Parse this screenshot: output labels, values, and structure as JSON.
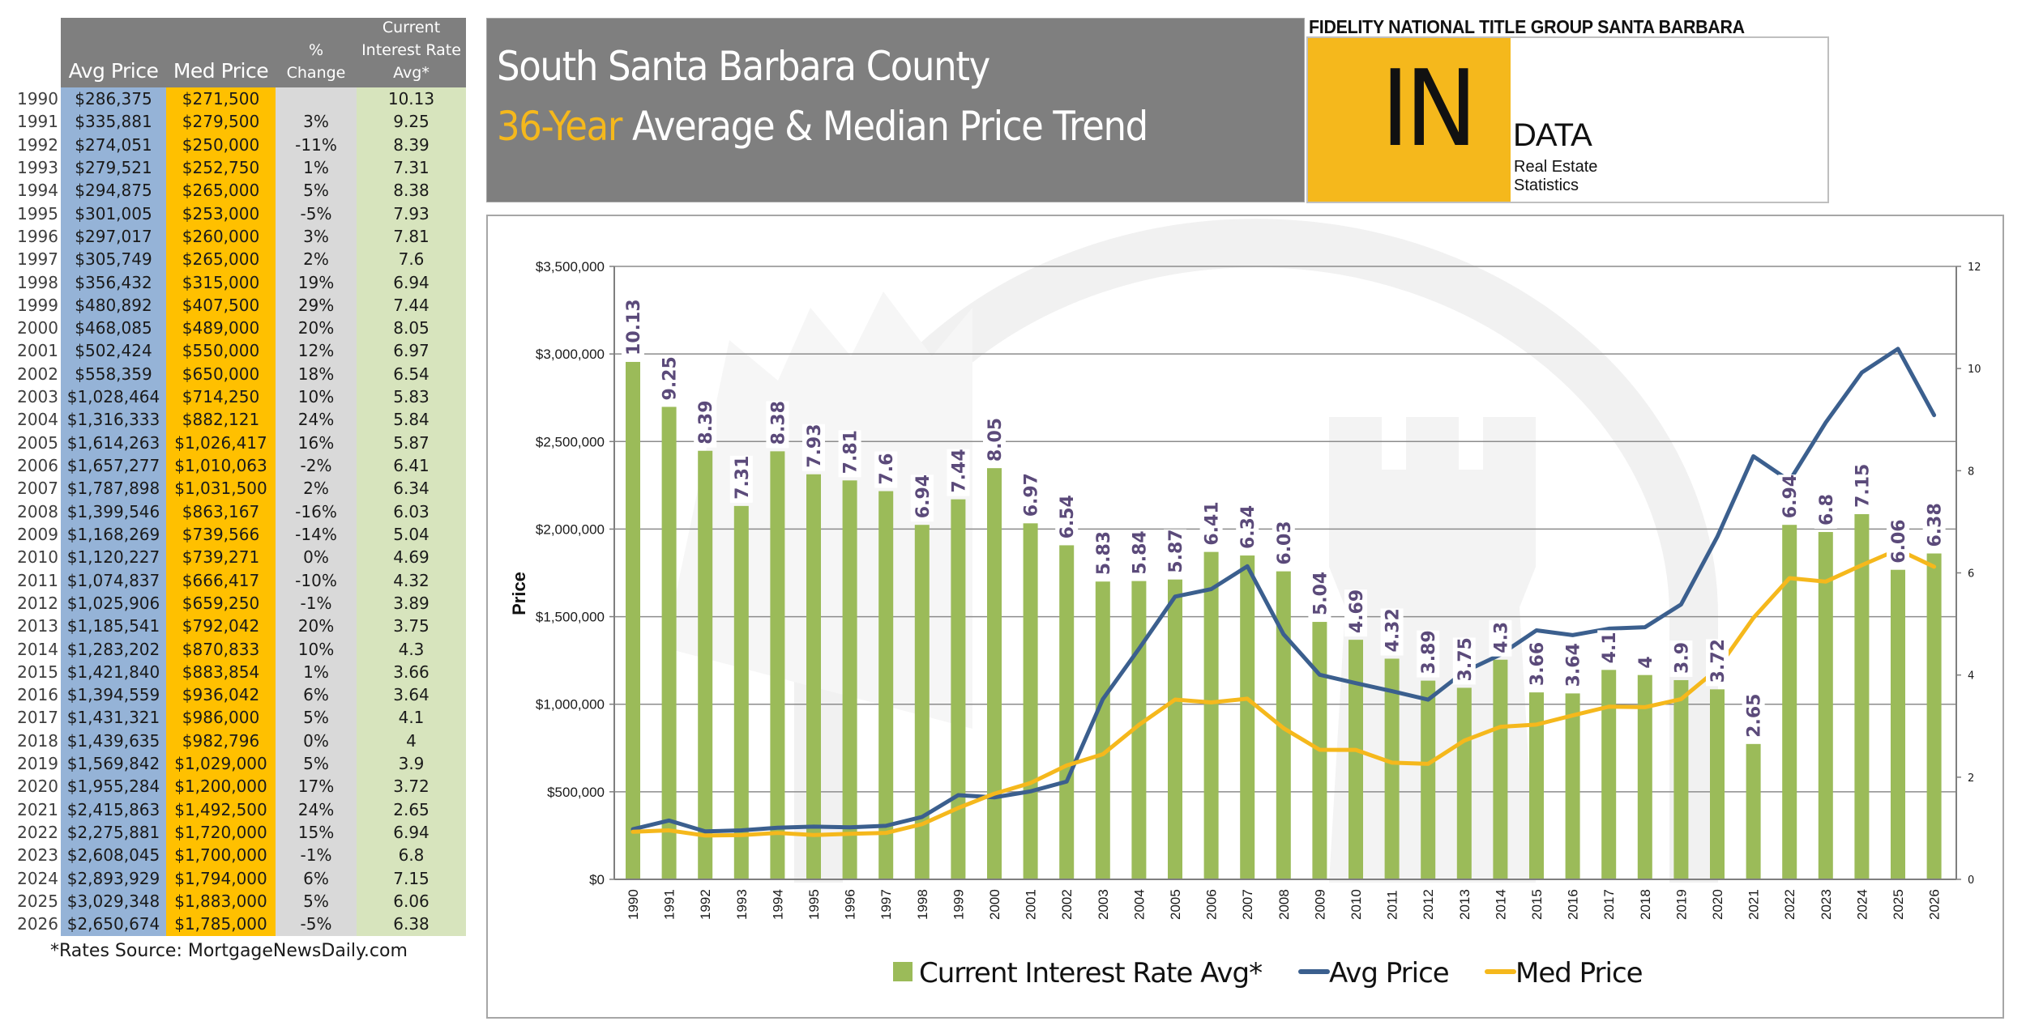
{
  "table": {
    "headers": {
      "avg": "Avg Price",
      "med": "Med Price",
      "chg_line1": "%",
      "chg_line2": "Change",
      "rate_line1": "Current",
      "rate_line2": "Interest Rate",
      "rate_line3": "Avg*"
    },
    "rows": [
      {
        "year": "1990",
        "avg": "$286,375",
        "med": "$271,500",
        "chg": "",
        "rate": "10.13"
      },
      {
        "year": "1991",
        "avg": "$335,881",
        "med": "$279,500",
        "chg": "3%",
        "rate": "9.25"
      },
      {
        "year": "1992",
        "avg": "$274,051",
        "med": "$250,000",
        "chg": "-11%",
        "rate": "8.39"
      },
      {
        "year": "1993",
        "avg": "$279,521",
        "med": "$252,750",
        "chg": "1%",
        "rate": "7.31"
      },
      {
        "year": "1994",
        "avg": "$294,875",
        "med": "$265,000",
        "chg": "5%",
        "rate": "8.38"
      },
      {
        "year": "1995",
        "avg": "$301,005",
        "med": "$253,000",
        "chg": "-5%",
        "rate": "7.93"
      },
      {
        "year": "1996",
        "avg": "$297,017",
        "med": "$260,000",
        "chg": "3%",
        "rate": "7.81"
      },
      {
        "year": "1997",
        "avg": "$305,749",
        "med": "$265,000",
        "chg": "2%",
        "rate": "7.6"
      },
      {
        "year": "1998",
        "avg": "$356,432",
        "med": "$315,000",
        "chg": "19%",
        "rate": "6.94"
      },
      {
        "year": "1999",
        "avg": "$480,892",
        "med": "$407,500",
        "chg": "29%",
        "rate": "7.44"
      },
      {
        "year": "2000",
        "avg": "$468,085",
        "med": "$489,000",
        "chg": "20%",
        "rate": "8.05"
      },
      {
        "year": "2001",
        "avg": "$502,424",
        "med": "$550,000",
        "chg": "12%",
        "rate": "6.97"
      },
      {
        "year": "2002",
        "avg": "$558,359",
        "med": "$650,000",
        "chg": "18%",
        "rate": "6.54"
      },
      {
        "year": "2003",
        "avg": "$1,028,464",
        "med": "$714,250",
        "chg": "10%",
        "rate": "5.83"
      },
      {
        "year": "2004",
        "avg": "$1,316,333",
        "med": "$882,121",
        "chg": "24%",
        "rate": "5.84"
      },
      {
        "year": "2005",
        "avg": "$1,614,263",
        "med": "$1,026,417",
        "chg": "16%",
        "rate": "5.87"
      },
      {
        "year": "2006",
        "avg": "$1,657,277",
        "med": "$1,010,063",
        "chg": "-2%",
        "rate": "6.41"
      },
      {
        "year": "2007",
        "avg": "$1,787,898",
        "med": "$1,031,500",
        "chg": "2%",
        "rate": "6.34"
      },
      {
        "year": "2008",
        "avg": "$1,399,546",
        "med": "$863,167",
        "chg": "-16%",
        "rate": "6.03"
      },
      {
        "year": "2009",
        "avg": "$1,168,269",
        "med": "$739,566",
        "chg": "-14%",
        "rate": "5.04"
      },
      {
        "year": "2010",
        "avg": "$1,120,227",
        "med": "$739,271",
        "chg": "0%",
        "rate": "4.69"
      },
      {
        "year": "2011",
        "avg": "$1,074,837",
        "med": "$666,417",
        "chg": "-10%",
        "rate": "4.32"
      },
      {
        "year": "2012",
        "avg": "$1,025,906",
        "med": "$659,250",
        "chg": "-1%",
        "rate": "3.89"
      },
      {
        "year": "2013",
        "avg": "$1,185,541",
        "med": "$792,042",
        "chg": "20%",
        "rate": "3.75"
      },
      {
        "year": "2014",
        "avg": "$1,283,202",
        "med": "$870,833",
        "chg": "10%",
        "rate": "4.3"
      },
      {
        "year": "2015",
        "avg": "$1,421,840",
        "med": "$883,854",
        "chg": "1%",
        "rate": "3.66"
      },
      {
        "year": "2016",
        "avg": "$1,394,559",
        "med": "$936,042",
        "chg": "6%",
        "rate": "3.64"
      },
      {
        "year": "2017",
        "avg": "$1,431,321",
        "med": "$986,000",
        "chg": "5%",
        "rate": "4.1"
      },
      {
        "year": "2018",
        "avg": "$1,439,635",
        "med": "$982,796",
        "chg": "0%",
        "rate": "4"
      },
      {
        "year": "2019",
        "avg": "$1,569,842",
        "med": "$1,029,000",
        "chg": "5%",
        "rate": "3.9"
      },
      {
        "year": "2020",
        "avg": "$1,955,284",
        "med": "$1,200,000",
        "chg": "17%",
        "rate": "3.72"
      },
      {
        "year": "2021",
        "avg": "$2,415,863",
        "med": "$1,492,500",
        "chg": "24%",
        "rate": "2.65"
      },
      {
        "year": "2022",
        "avg": "$2,275,881",
        "med": "$1,720,000",
        "chg": "15%",
        "rate": "6.94"
      },
      {
        "year": "2023",
        "avg": "$2,608,045",
        "med": "$1,700,000",
        "chg": "-1%",
        "rate": "6.8"
      },
      {
        "year": "2024",
        "avg": "$2,893,929",
        "med": "$1,794,000",
        "chg": "6%",
        "rate": "7.15"
      },
      {
        "year": "2025",
        "avg": "$3,029,348",
        "med": "$1,883,000",
        "chg": "5%",
        "rate": "6.06"
      },
      {
        "year": "2026",
        "avg": "$2,650,674",
        "med": "$1,785,000",
        "chg": "-5%",
        "rate": "6.38"
      }
    ],
    "footnote": "*Rates Source: MortgageNewsDaily.com"
  },
  "title": {
    "line1": "South Santa Barbara County",
    "line2_accent": "36-Year",
    "line2_rest": " Average & Median Price Trend"
  },
  "logo": {
    "company": "FIDELITY NATIONAL TITLE GROUP SANTA BARBARA",
    "big": "IN",
    "data": "DATA",
    "sub1": "Real Estate",
    "sub2": "Statistics"
  },
  "colors": {
    "bar": "#9bbb59",
    "avg_line": "#3b5f8e",
    "med_line": "#f5b81c",
    "data_label": "#5b4a7a",
    "header_gray": "#7f7f7f",
    "accent_yellow": "#f5b81c"
  },
  "chart_data": {
    "type": "bar",
    "title": "South Santa Barbara County 36-Year Average & Median Price Trend",
    "xlabel": "",
    "ylabel": "Price",
    "y2label": "",
    "ylim": [
      0,
      3500000
    ],
    "y2lim": [
      0,
      12
    ],
    "grid": true,
    "legend_position": "bottom",
    "categories": [
      "1990",
      "1991",
      "1992",
      "1993",
      "1994",
      "1995",
      "1996",
      "1997",
      "1998",
      "1999",
      "2000",
      "2001",
      "2002",
      "2003",
      "2004",
      "2005",
      "2006",
      "2007",
      "2008",
      "2009",
      "2010",
      "2011",
      "2012",
      "2013",
      "2014",
      "2015",
      "2016",
      "2017",
      "2018",
      "2019",
      "2020",
      "2021",
      "2022",
      "2023",
      "2024",
      "2025",
      "2026"
    ],
    "yticks": [
      0,
      500000,
      1000000,
      1500000,
      2000000,
      2500000,
      3000000,
      3500000
    ],
    "ytick_labels": [
      "$0",
      "$500,000",
      "$1,000,000",
      "$1,500,000",
      "$2,000,000",
      "$2,500,000",
      "$3,000,000",
      "$3,500,000"
    ],
    "y2ticks": [
      0,
      2,
      4,
      6,
      8,
      10,
      12
    ],
    "y2tick_labels": [
      "0",
      "2",
      "4",
      "6",
      "8",
      "10",
      "12"
    ],
    "series": [
      {
        "name": "Current Interest Rate Avg*",
        "type": "bar",
        "axis": "right",
        "values": [
          10.13,
          9.25,
          8.39,
          7.31,
          8.38,
          7.93,
          7.81,
          7.6,
          6.94,
          7.44,
          8.05,
          6.97,
          6.54,
          5.83,
          5.84,
          5.87,
          6.41,
          6.34,
          6.03,
          5.04,
          4.69,
          4.32,
          3.89,
          3.75,
          4.3,
          3.66,
          3.64,
          4.1,
          4,
          3.9,
          3.72,
          2.65,
          6.94,
          6.8,
          7.15,
          6.06,
          6.38
        ],
        "data_labels": [
          "10.13",
          "9.25",
          "8.39",
          "7.31",
          "8.38",
          "7.93",
          "7.81",
          "7.6",
          "6.94",
          "7.44",
          "8.05",
          "6.97",
          "6.54",
          "5.83",
          "5.84",
          "5.87",
          "6.41",
          "6.34",
          "6.03",
          "5.04",
          "4.69",
          "4.32",
          "3.89",
          "3.75",
          "4.3",
          "3.66",
          "3.64",
          "4.1",
          "4",
          "3.9",
          "3.72",
          "2.65",
          "6.94",
          "6.8",
          "7.15",
          "6.06",
          "6.38"
        ]
      },
      {
        "name": "Avg Price",
        "type": "line",
        "axis": "left",
        "values": [
          286375,
          335881,
          274051,
          279521,
          294875,
          301005,
          297017,
          305749,
          356432,
          480892,
          468085,
          502424,
          558359,
          1028464,
          1316333,
          1614263,
          1657277,
          1787898,
          1399546,
          1168269,
          1120227,
          1074837,
          1025906,
          1185541,
          1283202,
          1421840,
          1394559,
          1431321,
          1439635,
          1569842,
          1955284,
          2415863,
          2275881,
          2608045,
          2893929,
          3029348,
          2650674
        ]
      },
      {
        "name": "Med Price",
        "type": "line",
        "axis": "left",
        "values": [
          271500,
          279500,
          250000,
          252750,
          265000,
          253000,
          260000,
          265000,
          315000,
          407500,
          489000,
          550000,
          650000,
          714250,
          882121,
          1026417,
          1010063,
          1031500,
          863167,
          739566,
          739271,
          666417,
          659250,
          792042,
          870833,
          883854,
          936042,
          986000,
          982796,
          1029000,
          1200000,
          1492500,
          1720000,
          1700000,
          1794000,
          1883000,
          1785000
        ]
      }
    ],
    "legend": [
      "Current Interest Rate Avg*",
      "Avg Price",
      "Med Price"
    ]
  }
}
